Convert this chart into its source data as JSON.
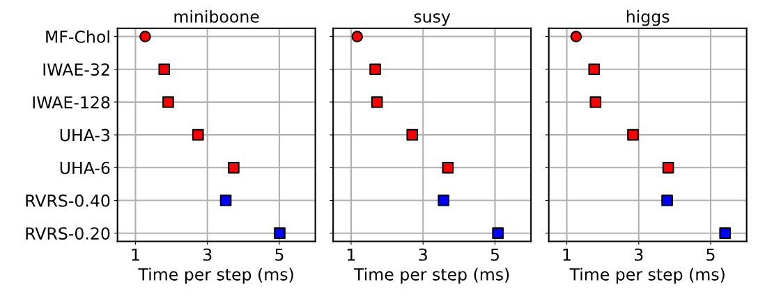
{
  "chart_data": [
    {
      "type": "scatter",
      "title": "miniboone",
      "xlabel": "Time per step (ms)",
      "orientation": "horizontal",
      "categories": [
        "MF-Chol",
        "IWAE-32",
        "IWAE-128",
        "UHA-3",
        "UHA-6",
        "RVRS-0.40",
        "RVRS-0.20"
      ],
      "xlim": [
        0.5,
        6
      ],
      "xticks": [
        1,
        3,
        5
      ],
      "grid": true,
      "series": [
        {
          "color": "#ff0000",
          "marker": "circle",
          "values": [
            1.27,
            null,
            null,
            null,
            null,
            null,
            null
          ]
        },
        {
          "color": "#ff0000",
          "marker": "square",
          "values": [
            null,
            1.8,
            1.91,
            2.74,
            3.73,
            null,
            null
          ]
        },
        {
          "color": "#0000ff",
          "marker": "square",
          "values": [
            null,
            null,
            null,
            null,
            null,
            3.51,
            5.01
          ]
        }
      ]
    },
    {
      "type": "scatter",
      "title": "susy",
      "xlabel": "Time per step (ms)",
      "orientation": "horizontal",
      "categories": [
        null,
        null,
        null,
        null,
        null,
        null,
        null
      ],
      "xlim": [
        0.5,
        6
      ],
      "xticks": [
        1,
        3,
        5
      ],
      "grid": true,
      "series": [
        {
          "color": "#ff0000",
          "marker": "circle",
          "values": [
            1.17,
            null,
            null,
            null,
            null,
            null,
            null
          ]
        },
        {
          "color": "#ff0000",
          "marker": "square",
          "values": [
            null,
            1.67,
            1.72,
            2.7,
            3.69,
            null,
            null
          ]
        },
        {
          "color": "#0000ff",
          "marker": "square",
          "values": [
            null,
            null,
            null,
            null,
            null,
            3.57,
            5.08
          ]
        }
      ]
    },
    {
      "type": "scatter",
      "title": "higgs",
      "xlabel": "Time per step (ms)",
      "orientation": "horizontal",
      "categories": [
        null,
        null,
        null,
        null,
        null,
        null,
        null
      ],
      "xlim": [
        0.5,
        6
      ],
      "xticks": [
        1,
        3,
        5
      ],
      "grid": true,
      "series": [
        {
          "color": "#ff0000",
          "marker": "circle",
          "values": [
            1.26,
            null,
            null,
            null,
            null,
            null,
            null
          ]
        },
        {
          "color": "#ff0000",
          "marker": "square",
          "values": [
            null,
            1.76,
            1.8,
            2.84,
            3.82,
            null,
            null
          ]
        },
        {
          "color": "#0000ff",
          "marker": "square",
          "values": [
            null,
            null,
            null,
            null,
            null,
            3.79,
            5.4
          ]
        }
      ]
    }
  ]
}
